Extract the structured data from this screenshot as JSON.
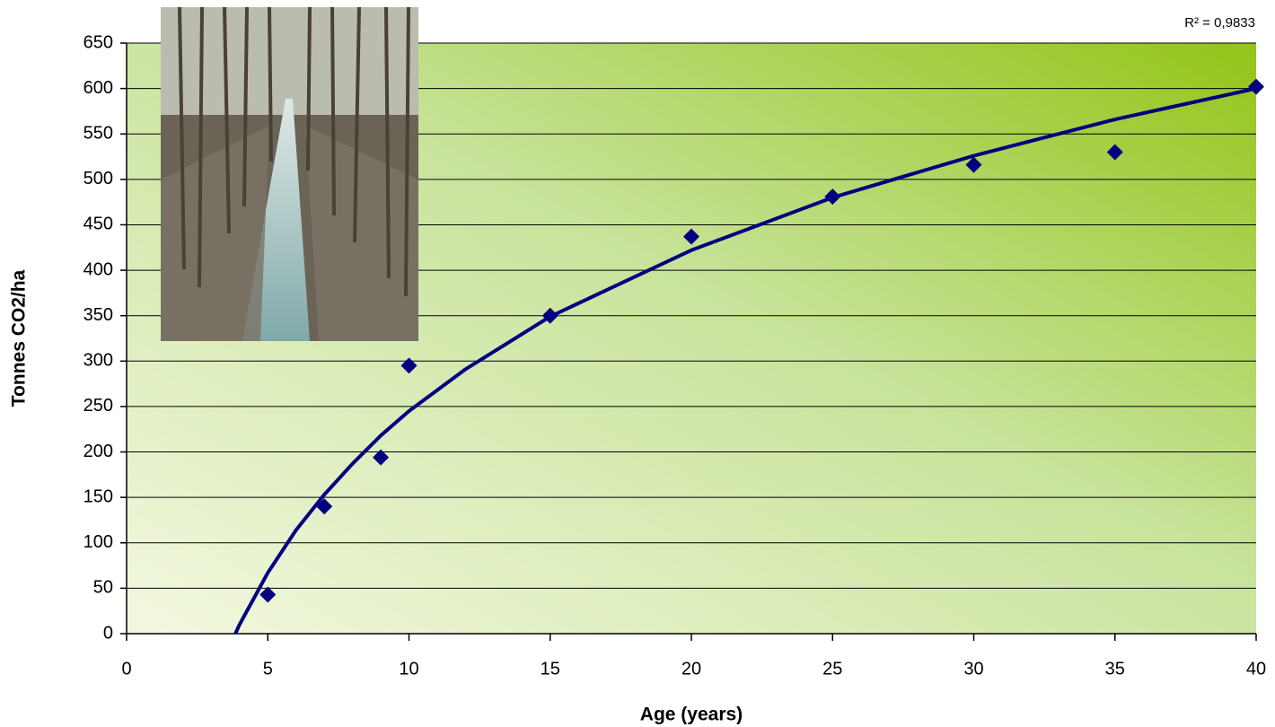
{
  "chart_data": {
    "type": "scatter",
    "x_label": "Age (years)",
    "y_label": "Tonnes CO2/ha",
    "annotation": "R² = 0,9833",
    "series": [
      {
        "color": "#000080",
        "x": [
          5,
          7,
          9,
          10,
          15,
          20,
          25,
          30,
          35,
          40
        ],
        "values": [
          43,
          140,
          194,
          295,
          350,
          437,
          481,
          516,
          530,
          602
        ]
      }
    ],
    "trendline": {
      "color": "#000080",
      "x": [
        3.85,
        4,
        5,
        6,
        7,
        8,
        9,
        10,
        12,
        15,
        20,
        25,
        30,
        35,
        40
      ],
      "values": [
        0,
        10,
        67,
        114,
        153,
        187,
        218,
        245,
        291,
        349,
        422,
        480,
        526,
        566,
        600
      ]
    },
    "xlim": [
      0,
      40
    ],
    "xticks": [
      0,
      5,
      10,
      15,
      20,
      25,
      30,
      35,
      40
    ],
    "ylim": [
      0,
      650
    ],
    "yticks": [
      0,
      50,
      100,
      150,
      200,
      250,
      300,
      350,
      400,
      450,
      500,
      550,
      600,
      650
    ],
    "grid": true
  }
}
